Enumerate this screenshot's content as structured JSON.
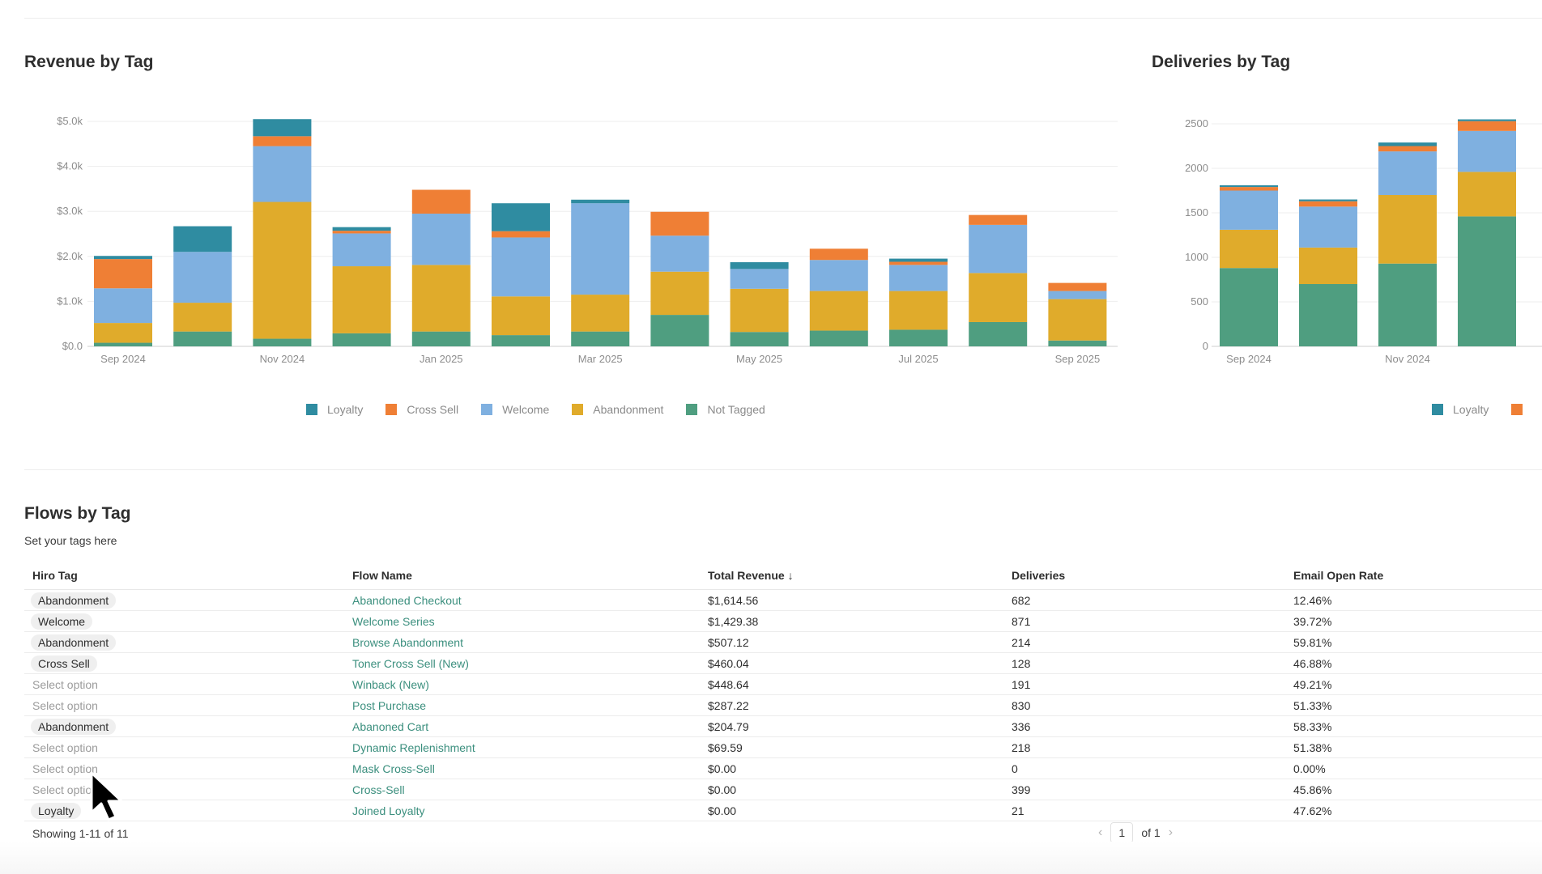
{
  "colors": {
    "loyalty": "#2f8ca1",
    "cross_sell": "#ef7f35",
    "welcome": "#7fb0e0",
    "abandonment": "#e0ab2b",
    "not_tagged": "#4f9e80"
  },
  "revenue_section": {
    "title": "Revenue by Tag"
  },
  "deliveries_section": {
    "title": "Deliveries by Tag"
  },
  "flows_section": {
    "title": "Flows by Tag",
    "subtitle": "Set your tags here",
    "columns": [
      "Hiro Tag",
      "Flow Name",
      "Total Revenue",
      "Deliveries",
      "Email Open Rate"
    ],
    "sort_icon": "arrow-down-icon",
    "rows": [
      {
        "tag": "Abandonment",
        "tagged": true,
        "flow": "Abandoned Checkout",
        "revenue": "$1,614.56",
        "deliveries": "682",
        "open_rate": "12.46%"
      },
      {
        "tag": "Welcome",
        "tagged": true,
        "flow": "Welcome Series",
        "revenue": "$1,429.38",
        "deliveries": "871",
        "open_rate": "39.72%"
      },
      {
        "tag": "Abandonment",
        "tagged": true,
        "flow": "Browse Abandonment",
        "revenue": "$507.12",
        "deliveries": "214",
        "open_rate": "59.81%"
      },
      {
        "tag": "Cross Sell",
        "tagged": true,
        "flow": "Toner Cross Sell (New)",
        "revenue": "$460.04",
        "deliveries": "128",
        "open_rate": "46.88%"
      },
      {
        "tag": "Select option",
        "tagged": false,
        "flow": "Winback (New)",
        "revenue": "$448.64",
        "deliveries": "191",
        "open_rate": "49.21%"
      },
      {
        "tag": "Select option",
        "tagged": false,
        "flow": "Post Purchase",
        "revenue": "$287.22",
        "deliveries": "830",
        "open_rate": "51.33%"
      },
      {
        "tag": "Abandonment",
        "tagged": true,
        "flow": "Abanoned Cart",
        "revenue": "$204.79",
        "deliveries": "336",
        "open_rate": "58.33%"
      },
      {
        "tag": "Select option",
        "tagged": false,
        "flow": "Dynamic Replenishment",
        "revenue": "$69.59",
        "deliveries": "218",
        "open_rate": "51.38%"
      },
      {
        "tag": "Select option",
        "tagged": false,
        "flow": "Mask Cross-Sell",
        "revenue": "$0.00",
        "deliveries": "0",
        "open_rate": "0.00%"
      },
      {
        "tag": "Select option",
        "tagged": false,
        "flow": "Cross-Sell",
        "revenue": "$0.00",
        "deliveries": "399",
        "open_rate": "45.86%"
      },
      {
        "tag": "Loyalty",
        "tagged": true,
        "flow": "Joined Loyalty",
        "revenue": "$0.00",
        "deliveries": "21",
        "open_rate": "47.62%"
      }
    ],
    "showing_text": "Showing 1-11 of 11",
    "pagination": {
      "current_page": "1",
      "of_text": "of 1",
      "prev_icon": "chevron-left-icon",
      "next_icon": "chevron-right-icon"
    }
  },
  "chart_data": [
    {
      "type": "bar",
      "stacked": true,
      "title": "Revenue by Tag",
      "xlabel": "",
      "ylabel": "",
      "ylim": [
        0,
        5000
      ],
      "ytick_labels": [
        "$0.0",
        "$1.0k",
        "$2.0k",
        "$3.0k",
        "$4.0k",
        "$5.0k"
      ],
      "categories": [
        "Sep 2024",
        "Oct 2024",
        "Nov 2024",
        "Dec 2024",
        "Jan 2025",
        "Feb 2025",
        "Mar 2025",
        "Apr 2025",
        "May 2025",
        "Jun 2025",
        "Jul 2025",
        "Aug 2025",
        "Sep 2025"
      ],
      "xtick_labels": [
        "Sep 2024",
        "",
        "Nov 2024",
        "",
        "Jan 2025",
        "",
        "Mar 2025",
        "",
        "May 2025",
        "",
        "Jul 2025",
        "",
        "Sep 2025"
      ],
      "legend_position": "bottom",
      "grid": true,
      "series": [
        {
          "name": "Not Tagged",
          "values": [
            80,
            330,
            170,
            290,
            330,
            250,
            330,
            700,
            320,
            350,
            370,
            540,
            130
          ]
        },
        {
          "name": "Abandonment",
          "values": [
            440,
            640,
            3040,
            1490,
            1480,
            860,
            820,
            960,
            960,
            880,
            860,
            1090,
            920
          ]
        },
        {
          "name": "Welcome",
          "values": [
            770,
            1130,
            1240,
            730,
            1140,
            1310,
            2030,
            800,
            440,
            690,
            580,
            1070,
            180
          ]
        },
        {
          "name": "Cross Sell",
          "values": [
            650,
            0,
            220,
            60,
            530,
            140,
            0,
            530,
            0,
            250,
            70,
            220,
            180
          ]
        },
        {
          "name": "Loyalty",
          "values": [
            70,
            570,
            380,
            80,
            0,
            620,
            80,
            0,
            150,
            0,
            70,
            0,
            0
          ]
        }
      ]
    },
    {
      "type": "bar",
      "stacked": true,
      "title": "Deliveries by Tag",
      "xlabel": "",
      "ylabel": "",
      "ylim": [
        0,
        2500
      ],
      "ytick_labels": [
        "0",
        "500",
        "1000",
        "1500",
        "2000",
        "2500"
      ],
      "categories": [
        "Sep 2024",
        "Oct 2024",
        "Nov 2024",
        "Dec 2024"
      ],
      "xtick_labels": [
        "Sep 2024",
        "",
        "Nov 2024",
        ""
      ],
      "legend_position": "bottom",
      "legend_visible": [
        "Loyalty"
      ],
      "grid": true,
      "series": [
        {
          "name": "Not Tagged",
          "values": [
            880,
            700,
            930,
            1460
          ]
        },
        {
          "name": "Abandonment",
          "values": [
            430,
            410,
            770,
            500
          ]
        },
        {
          "name": "Welcome",
          "values": [
            440,
            460,
            490,
            460
          ]
        },
        {
          "name": "Cross Sell",
          "values": [
            40,
            60,
            60,
            110
          ]
        },
        {
          "name": "Loyalty",
          "values": [
            20,
            20,
            40,
            20
          ]
        }
      ]
    }
  ]
}
